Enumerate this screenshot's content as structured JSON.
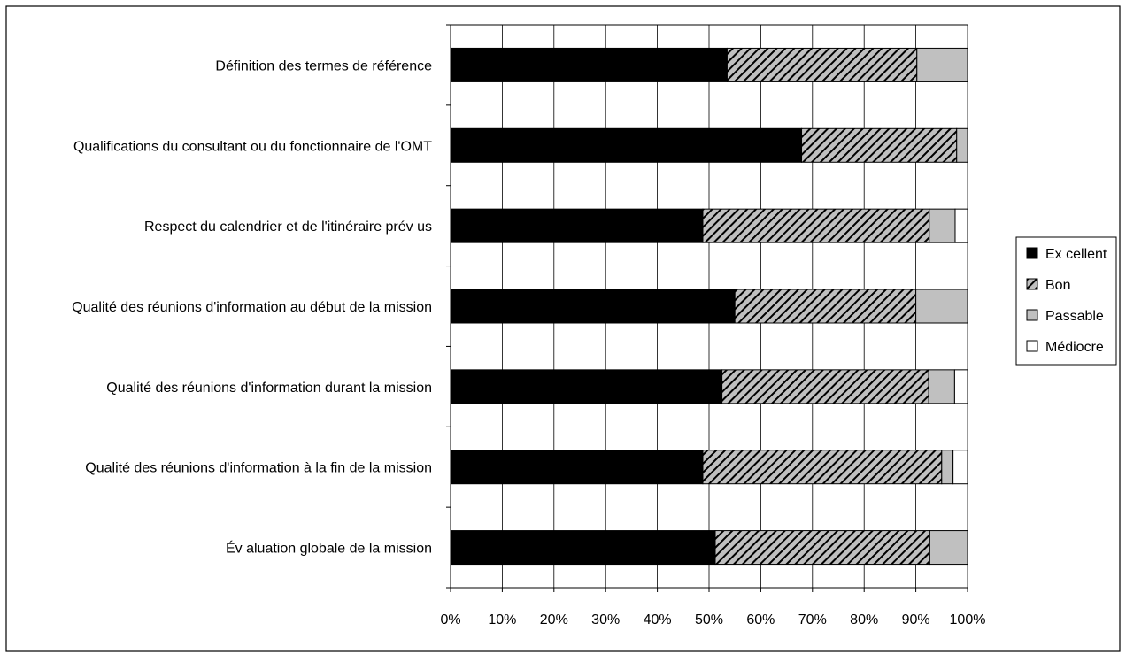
{
  "chart_data": {
    "type": "bar",
    "orientation": "horizontal",
    "stacked": true,
    "percent_stacked": true,
    "categories": [
      "Définition des termes de référence",
      "Qualifications du consultant ou du fonctionnaire de l'OMT",
      "Respect du calendrier et de l'itinéraire prév us",
      "Qualité des réunions d'information au début de la mission",
      "Qualité des réunions d'information durant la mission",
      "Qualité des réunions d'information à la fin de la mission",
      "Év aluation globale de la mission"
    ],
    "series": [
      {
        "name": "Ex cellent",
        "values": [
          53.5,
          67.9,
          48.8,
          55.0,
          52.5,
          48.8,
          51.2
        ]
      },
      {
        "name": "Bon",
        "values": [
          36.7,
          30.0,
          43.8,
          35.0,
          40.0,
          46.2,
          41.5
        ]
      },
      {
        "name": "Passable",
        "values": [
          9.8,
          2.1,
          5.0,
          10.0,
          5.0,
          2.2,
          7.3
        ]
      },
      {
        "name": "Médiocre",
        "values": [
          0,
          0,
          2.4,
          0,
          2.5,
          2.8,
          0
        ]
      }
    ],
    "x_ticks": [
      "0%",
      "10%",
      "20%",
      "30%",
      "40%",
      "50%",
      "60%",
      "70%",
      "80%",
      "90%",
      "100%"
    ],
    "xlim": [
      0,
      100
    ],
    "grid": "vertical",
    "legend_position": "right",
    "title": "",
    "xlabel": "",
    "ylabel": "",
    "colors": {
      "Ex cellent": "#000000",
      "Bon": "hatched-gray",
      "Passable": "#c0c0c0",
      "Médiocre": "#ffffff"
    }
  }
}
